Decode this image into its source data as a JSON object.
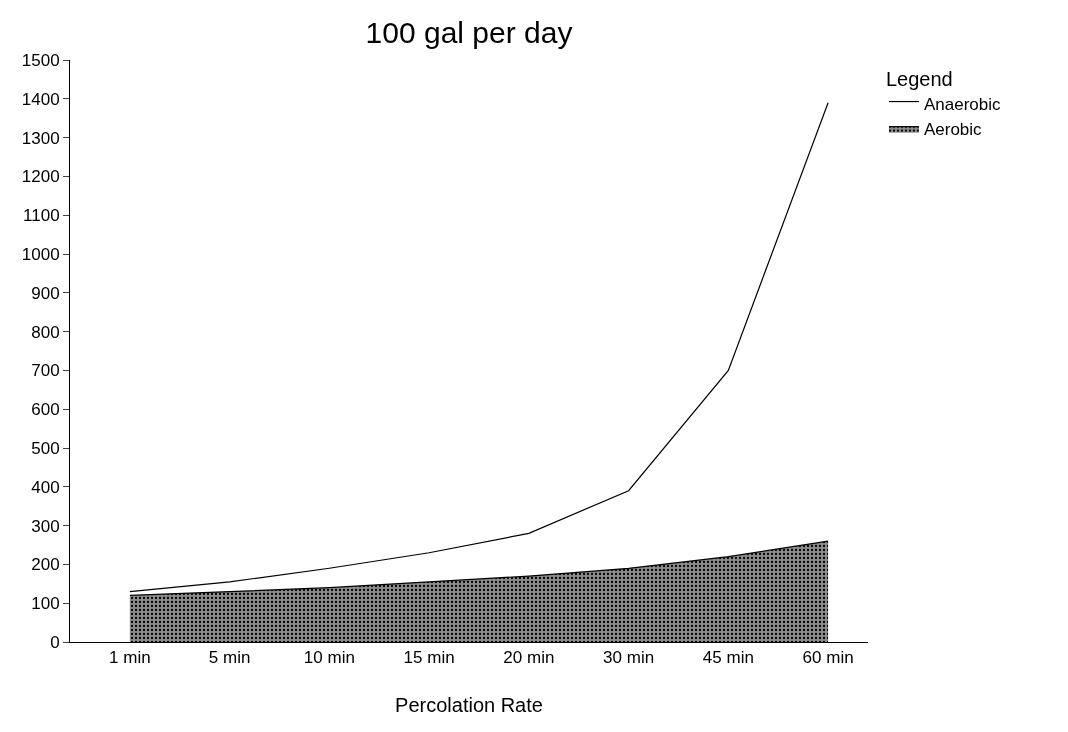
{
  "chart_data": {
    "type": "area",
    "title": "100 gal per day",
    "xlabel": "Percolation Rate",
    "legend_title": "Legend",
    "stacked": true,
    "categories": [
      "1 min",
      "5 min",
      "10 min",
      "15 min",
      "20 min",
      "30 min",
      "45 min",
      "60 min"
    ],
    "series": [
      {
        "name": "Aerobic",
        "color": "#8c8c8c",
        "values": [
          120,
          130,
          140,
          155,
          170,
          190,
          220,
          260
        ]
      },
      {
        "name": "Anaerobic",
        "color": "#ffffff",
        "values": [
          10,
          25,
          50,
          75,
          110,
          200,
          480,
          1130
        ]
      }
    ],
    "ylim": [
      0,
      1500
    ],
    "yticks": [
      0,
      100,
      200,
      300,
      400,
      500,
      600,
      700,
      800,
      900,
      1000,
      1100,
      1200,
      1300,
      1400,
      1500
    ],
    "grid": false,
    "legend": "top right",
    "line_style": "solid",
    "marker": "none"
  }
}
